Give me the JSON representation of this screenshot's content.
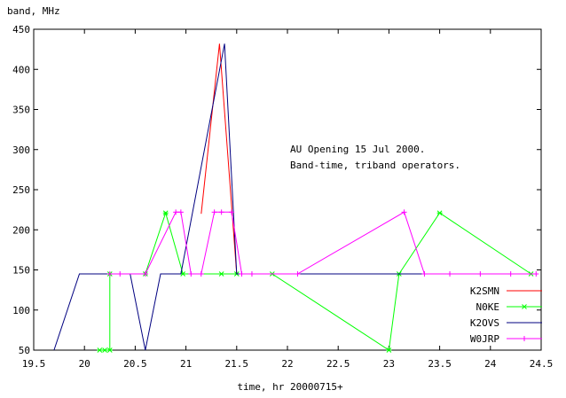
{
  "chart_data": {
    "type": "line",
    "ylabel": "band, MHz",
    "xlabel": "time, hr  20000715+",
    "annotation": [
      "AU Opening 15 Jul 2000.",
      "Band-time, triband operators."
    ],
    "xlim": [
      19.5,
      24.5
    ],
    "ylim": [
      50,
      450
    ],
    "x_ticks": [
      "19.5",
      "20",
      "20.5",
      "21",
      "21.5",
      "22",
      "22.5",
      "23",
      "23.5",
      "24",
      "24.5"
    ],
    "y_ticks": [
      "50",
      "100",
      "150",
      "200",
      "250",
      "300",
      "350",
      "400",
      "450"
    ],
    "legend_position": "bottom-right",
    "series": [
      {
        "name": "K2SMN",
        "color": "#ff0000",
        "marker": "none",
        "points": [
          [
            21.15,
            220
          ],
          [
            21.33,
            432
          ],
          [
            21.5,
            145
          ],
          [
            24.0,
            145
          ]
        ]
      },
      {
        "name": "N0KE",
        "color": "#00ff00",
        "marker": "x",
        "points": [
          [
            20.15,
            50
          ],
          [
            20.2,
            50
          ],
          [
            20.25,
            50
          ],
          [
            20.25,
            145
          ],
          [
            20.6,
            145
          ],
          [
            20.8,
            221
          ],
          [
            20.97,
            145
          ],
          [
            21.35,
            145
          ],
          [
            21.5,
            145
          ],
          [
            21.85,
            145
          ],
          [
            23.0,
            50
          ],
          [
            23.1,
            145
          ],
          [
            23.5,
            221
          ],
          [
            24.4,
            145
          ]
        ]
      },
      {
        "name": "K2OVS",
        "color": "#000080",
        "marker": "none",
        "points": [
          [
            19.7,
            50
          ],
          [
            19.95,
            145
          ],
          [
            20.45,
            145
          ],
          [
            20.6,
            50
          ],
          [
            20.75,
            145
          ],
          [
            20.95,
            145
          ],
          [
            21.38,
            432
          ],
          [
            21.5,
            145
          ],
          [
            24.1,
            145
          ]
        ]
      },
      {
        "name": "W0JRP",
        "color": "#ff00ff",
        "marker": "plus",
        "points": [
          [
            20.25,
            145
          ],
          [
            20.35,
            145
          ],
          [
            20.6,
            145
          ],
          [
            20.9,
            222
          ],
          [
            20.95,
            222
          ],
          [
            21.05,
            145
          ],
          [
            21.15,
            145
          ],
          [
            21.28,
            222
          ],
          [
            21.35,
            222
          ],
          [
            21.45,
            222
          ],
          [
            21.55,
            145
          ],
          [
            21.65,
            145
          ],
          [
            22.1,
            145
          ],
          [
            23.15,
            222
          ],
          [
            23.35,
            145
          ],
          [
            23.6,
            145
          ],
          [
            23.9,
            145
          ],
          [
            24.2,
            145
          ],
          [
            24.45,
            145
          ]
        ]
      }
    ]
  }
}
